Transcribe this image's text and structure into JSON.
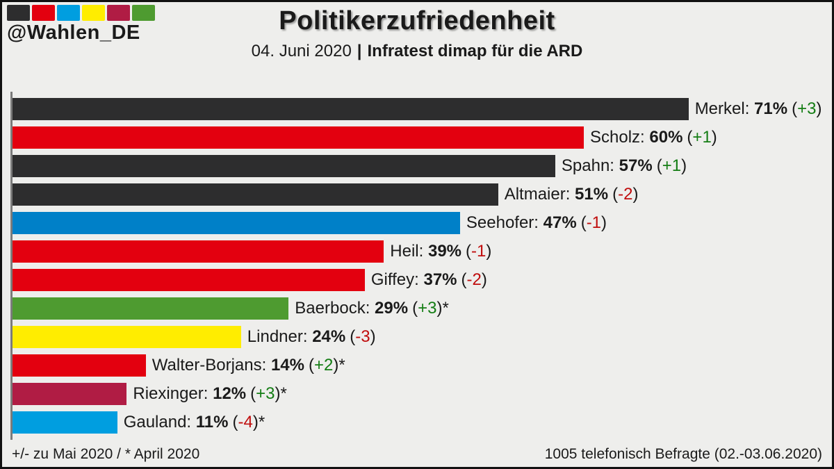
{
  "header": {
    "handle": "@Wahlen_DE",
    "logo_colors": [
      "#2d2d2e",
      "#e3000f",
      "#009ee0",
      "#ffed00",
      "#b01c44",
      "#4e9b30"
    ],
    "title": "Politikerzufriedenheit",
    "date": "04. Juni 2020",
    "separator": "|",
    "source": "Infratest dimap für die ARD"
  },
  "chart_data": {
    "type": "bar",
    "orientation": "horizontal",
    "title": "Politikerzufriedenheit",
    "unit": "%",
    "xlim": [
      0,
      100
    ],
    "grid": false,
    "legend": "none",
    "categories": [
      "Merkel",
      "Scholz",
      "Spahn",
      "Altmaier",
      "Seehofer",
      "Heil",
      "Giffey",
      "Baerbock",
      "Lindner",
      "Walter-Borjans",
      "Riexinger",
      "Gauland"
    ],
    "values": [
      71,
      60,
      57,
      51,
      47,
      39,
      37,
      29,
      24,
      14,
      12,
      11
    ],
    "changes": [
      "+3",
      "+1",
      "+1",
      "-2",
      "-1",
      "-1",
      "-2",
      "+3",
      "-3",
      "+2",
      "+3",
      "-4"
    ],
    "bars": [
      {
        "name": "Merkel",
        "value": 71,
        "change": "+3",
        "asterisk": false,
        "color": "#2d2d2e"
      },
      {
        "name": "Scholz",
        "value": 60,
        "change": "+1",
        "asterisk": false,
        "color": "#e3000f"
      },
      {
        "name": "Spahn",
        "value": 57,
        "change": "+1",
        "asterisk": false,
        "color": "#2d2d2e"
      },
      {
        "name": "Altmaier",
        "value": 51,
        "change": "-2",
        "asterisk": false,
        "color": "#2d2d2e"
      },
      {
        "name": "Seehofer",
        "value": 47,
        "change": "-1",
        "asterisk": false,
        "color": "#0080c8"
      },
      {
        "name": "Heil",
        "value": 39,
        "change": "-1",
        "asterisk": false,
        "color": "#e3000f"
      },
      {
        "name": "Giffey",
        "value": 37,
        "change": "-2",
        "asterisk": false,
        "color": "#e3000f"
      },
      {
        "name": "Baerbock",
        "value": 29,
        "change": "+3",
        "asterisk": true,
        "color": "#4e9b30"
      },
      {
        "name": "Lindner",
        "value": 24,
        "change": "-3",
        "asterisk": false,
        "color": "#ffed00"
      },
      {
        "name": "Walter-Borjans",
        "value": 14,
        "change": "+2",
        "asterisk": true,
        "color": "#e3000f"
      },
      {
        "name": "Riexinger",
        "value": 12,
        "change": "+3",
        "asterisk": true,
        "color": "#b01c44"
      },
      {
        "name": "Gauland",
        "value": 11,
        "change": "-4",
        "asterisk": true,
        "color": "#009ee0"
      }
    ]
  },
  "footer": {
    "left": "+/- zu Mai 2020 / * April 2020",
    "right": "1005 telefonisch Befragte (02.-03.06.2020)"
  },
  "colors": {
    "positive_change": "#147d14",
    "negative_change": "#c00d0d",
    "background": "#eeeeec",
    "axis": "#7b7b7b",
    "text": "#1a1a1a"
  }
}
